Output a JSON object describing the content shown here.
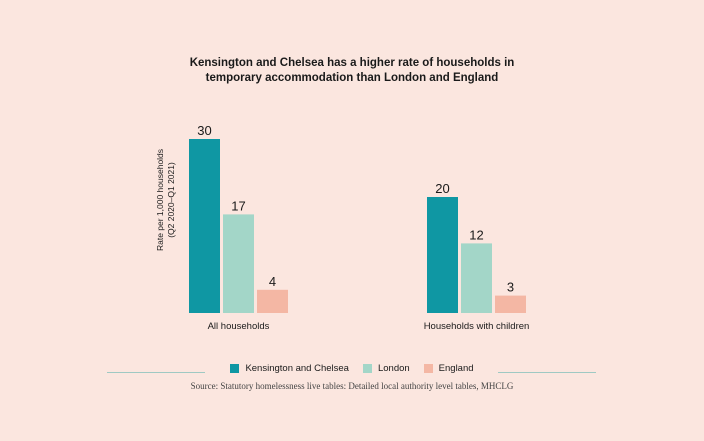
{
  "chart_data": {
    "type": "bar",
    "title_lines": [
      "Kensington and Chelsea has a higher rate of households in",
      "temporary accommodation than London and England"
    ],
    "ylabel_lines": [
      "Rate per 1,000 households",
      "(Q2 2020–Q1 2021)"
    ],
    "categories": [
      "All households",
      "Households with children"
    ],
    "series": [
      {
        "name": "Kensington and Chelsea",
        "color": "#0f97a3",
        "values": [
          30,
          20
        ]
      },
      {
        "name": "London",
        "color": "#a3d6c8",
        "values": [
          17,
          12
        ]
      },
      {
        "name": "England",
        "color": "#f4b7a4",
        "values": [
          4,
          3
        ]
      }
    ],
    "ylim": [
      0,
      30
    ],
    "grid": false,
    "legend_position": "bottom"
  },
  "source": "Source: Statutory homelessness live tables: Detailed local authority level tables, MHCLG"
}
